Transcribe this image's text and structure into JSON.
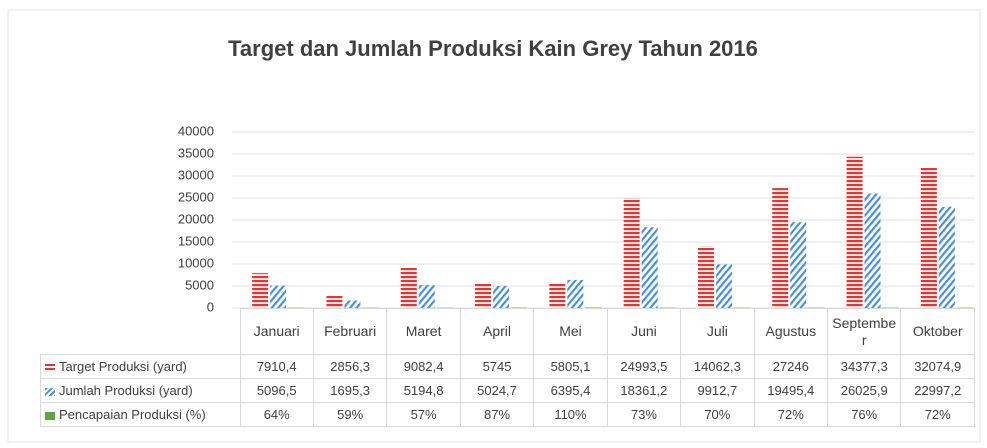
{
  "chart_data": {
    "type": "bar",
    "title": "Target dan Jumlah Produksi Kain Grey Tahun 2016",
    "categories": [
      "Januari",
      "Februari",
      "Maret",
      "April",
      "Mei",
      "Juni",
      "Juli",
      "Agustus",
      "September",
      "Oktober"
    ],
    "series": [
      {
        "name": "Target Produksi (yard)",
        "color": "#e8332f",
        "values": [
          7910.4,
          2856.3,
          9082.4,
          5745,
          5805.1,
          24993.5,
          14062.3,
          27246,
          34377.3,
          32074.9
        ],
        "value_labels": [
          "7910,4",
          "2856,3",
          "9082,4",
          "5745",
          "5805,1",
          "24993,5",
          "14062,3",
          "27246",
          "34377,3",
          "32074,9"
        ]
      },
      {
        "name": "Jumlah Produksi (yard)",
        "color": "#4a90d9",
        "values": [
          5096.5,
          1695.3,
          5194.8,
          5024.7,
          6395.4,
          18361.2,
          9912.7,
          19495.4,
          26025.9,
          22997.2
        ],
        "value_labels": [
          "5096,5",
          "1695,3",
          "5194,8",
          "5024,7",
          "6395,4",
          "18361,2",
          "9912,7",
          "19495,4",
          "26025,9",
          "22997,2"
        ]
      },
      {
        "name": "Pencapaian Produksi (%)",
        "color": "#5aa83a",
        "values": [
          64,
          59,
          57,
          87,
          110,
          73,
          70,
          72,
          76,
          72
        ],
        "value_labels": [
          "64%",
          "59%",
          "57%",
          "87%",
          "110%",
          "73%",
          "70%",
          "72%",
          "76%",
          "72%"
        ]
      }
    ],
    "ylim": [
      0,
      40000
    ],
    "yticks": [
      0,
      5000,
      10000,
      15000,
      20000,
      25000,
      30000,
      35000,
      40000
    ],
    "grid": true
  }
}
